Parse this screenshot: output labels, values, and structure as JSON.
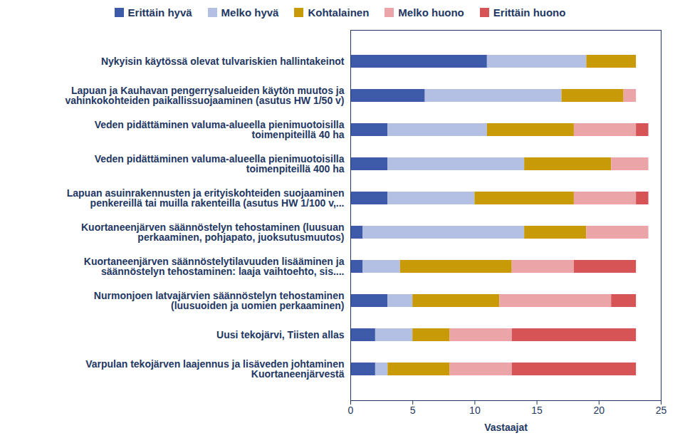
{
  "chart_data": {
    "type": "bar",
    "orientation": "horizontal",
    "stacked": true,
    "grid": false,
    "legend": "top",
    "x_label": "Vastaajat",
    "xlim": [
      0,
      25
    ],
    "xticks": [
      0,
      5,
      10,
      15,
      20,
      25
    ],
    "categories": [
      "Nykyisin käytössä olevat tulvariskien hallintakeinot",
      "Lapuan ja Kauhavan pengerrysalueiden käytön muutos ja\nvahinkokohteiden paikallissuojaaminen (asutus HW 1/50 v)",
      "Veden pidättäminen valuma-alueella pienimuotoisilla\ntoimenpiteillä 40 ha",
      "Veden pidättäminen valuma-alueella pienimuotoisilla\ntoimenpiteillä 400 ha",
      "Lapuan asuinrakennusten ja erityiskohteiden suojaaminen\npenkereillä tai muilla rakenteilla (asutus HW 1/100 v,...",
      "Kuortaneenjärven säännöstelyn tehostaminen (luusuan\nperkaaminen, pohjapato, juoksutusmuutos)",
      "Kuortaneenjärven säännöstelytilavuuden lisääminen ja\nsäännöstelyn tehostaminen: laaja vaihtoehto, sis....",
      "Nurmonjoen latvajärvien säännöstelyn tehostaminen\n(luusuoiden ja uomien perkaaminen)",
      "Uusi tekojärvi, Tiisten allas",
      "Varpulan tekojärven laajennus ja lisäveden johtaminen\nKuortaneenjärvestä"
    ],
    "series": [
      {
        "name": "Erittäin hyvä",
        "color": "#3D5BA9",
        "values": [
          11,
          6,
          3,
          3,
          3,
          1,
          1,
          3,
          2,
          2
        ]
      },
      {
        "name": "Melko hyvä",
        "color": "#B3BFE3",
        "values": [
          8,
          11,
          8,
          11,
          7,
          13,
          3,
          2,
          3,
          1
        ]
      },
      {
        "name": "Kohtalainen",
        "color": "#C99A08",
        "values": [
          4,
          5,
          7,
          7,
          8,
          5,
          9,
          7,
          3,
          5
        ]
      },
      {
        "name": "Melko huono",
        "color": "#EBA5A9",
        "values": [
          0,
          1,
          5,
          3,
          5,
          5,
          5,
          9,
          5,
          5
        ]
      },
      {
        "name": "Erittäin huono",
        "color": "#D65356",
        "values": [
          0,
          0,
          1,
          0,
          1,
          0,
          5,
          2,
          10,
          10
        ]
      }
    ]
  }
}
